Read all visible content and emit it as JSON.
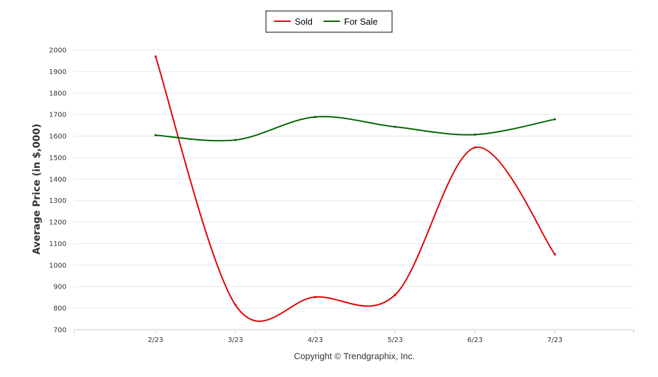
{
  "chart_data": {
    "type": "line",
    "categories": [
      "2/23",
      "3/23",
      "4/23",
      "5/23",
      "6/23",
      "7/23"
    ],
    "series": [
      {
        "name": "Sold",
        "color": "#e00000",
        "values": [
          1970,
          815,
          852,
          862,
          1547,
          1050
        ]
      },
      {
        "name": "For Sale",
        "color": "#006400",
        "values": [
          1604,
          1582,
          1689,
          1643,
          1607,
          1678
        ]
      }
    ],
    "ylabel": "Average Price (in $,000)",
    "xlabel": "",
    "ylim": [
      700,
      2000
    ],
    "yticks": [
      700,
      800,
      900,
      1000,
      1100,
      1200,
      1300,
      1400,
      1500,
      1600,
      1700,
      1800,
      1900,
      2000
    ],
    "grid": true,
    "legend_position": "top-center"
  },
  "footer": {
    "copyright": "Copyright © Trendgraphix, Inc."
  }
}
